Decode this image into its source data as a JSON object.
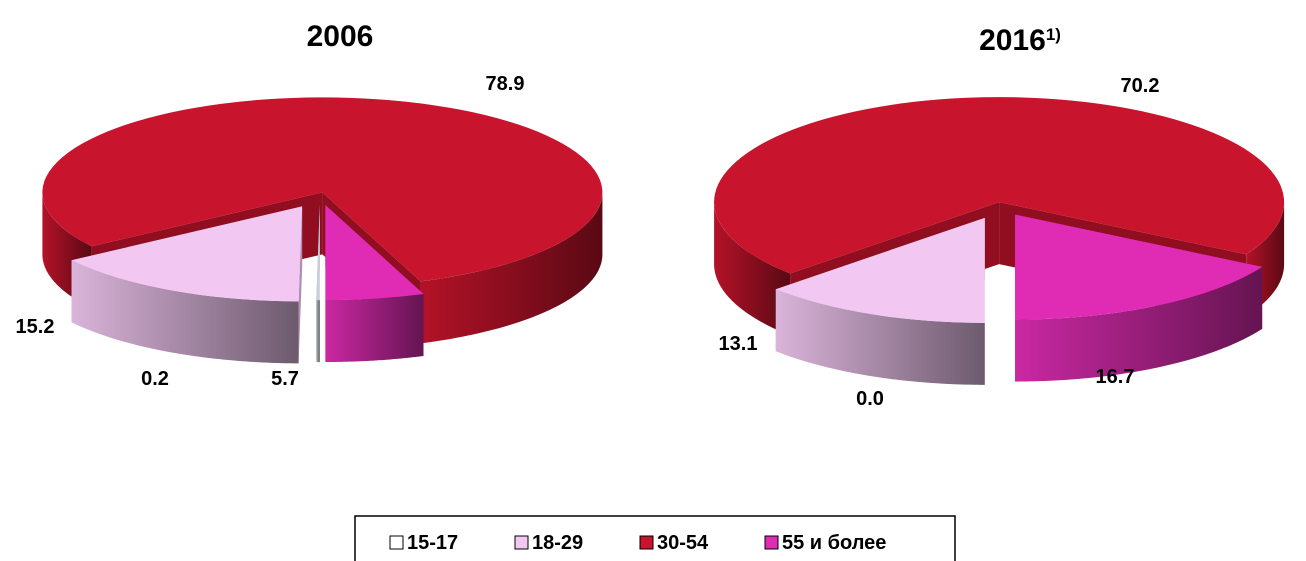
{
  "chart_data": [
    {
      "type": "pie",
      "title": "2006",
      "categories": [
        "15-17",
        "18-29",
        "30-54",
        "55 и более"
      ],
      "values": [
        0.2,
        15.2,
        78.9,
        5.7
      ],
      "value_labels": [
        "0.2",
        "15.2",
        "78.9",
        "5.7"
      ],
      "colors": [
        "#c9d0d8",
        "#f2c8f2",
        "#c8142c",
        "#e02cb4"
      ],
      "legend": "bottom"
    },
    {
      "type": "pie",
      "title": "2016",
      "title_note": "1)",
      "categories": [
        "15-17",
        "18-29",
        "30-54",
        "55 и более"
      ],
      "values": [
        0.0,
        13.1,
        70.2,
        16.7
      ],
      "value_labels": [
        "0.0",
        "13.1",
        "70.2",
        "16.7"
      ],
      "colors": [
        "#c9d0d8",
        "#f2c8f2",
        "#c8142c",
        "#e02cb4"
      ],
      "legend": "bottom"
    }
  ]
}
